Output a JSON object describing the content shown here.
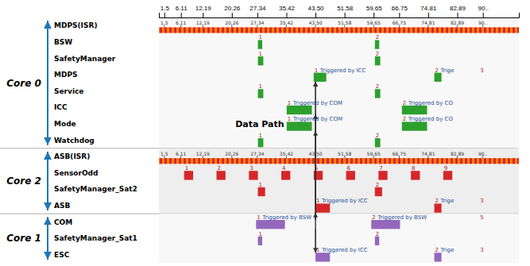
{
  "chart_data": {
    "type": "gantt",
    "orientation": "horizontal",
    "categories": [
      "MDPS(ISR)",
      "BSW",
      "SafetyManager",
      "MDPS",
      "Service",
      "ICC",
      "Mode",
      "Watchdog",
      "ASB(ISR)",
      "SensorOdd",
      "SafetyManager_Sat2",
      "ASB",
      "COM",
      "SafetyManager_Sat1",
      "ESC"
    ],
    "groups": [
      {
        "name": "Core 0",
        "rows": [
          0,
          7
        ]
      },
      {
        "name": "Core 2",
        "rows": [
          8,
          11
        ]
      },
      {
        "name": "Core 1",
        "rows": [
          12,
          14
        ]
      }
    ],
    "tasks": [
      {
        "isr": true,
        "bars": []
      },
      {
        "isr": false,
        "bars": [
          {
            "start": 27.5,
            "width": 1.2
          },
          {
            "start": 60.0,
            "width": 1.2
          }
        ]
      },
      {
        "isr": false,
        "bars": [
          {
            "start": 27.5,
            "width": 1.5
          },
          {
            "start": 60.0,
            "width": 1.5
          }
        ]
      },
      {
        "isr": false,
        "bars": [
          {
            "start": 43.0,
            "width": 3.5,
            "label": "Triggered by ICC"
          },
          {
            "start": 76.5,
            "width": 2.0,
            "label": "Trige"
          }
        ]
      },
      {
        "isr": false,
        "bars": [
          {
            "start": 27.5,
            "width": 1.5
          },
          {
            "start": 60.0,
            "width": 1.5
          }
        ]
      },
      {
        "isr": false,
        "bars": [
          {
            "start": 35.5,
            "width": 7.0,
            "label": "Triggered by COM"
          },
          {
            "start": 67.5,
            "width": 7.0,
            "label": "Triggered by CO"
          }
        ]
      },
      {
        "isr": false,
        "bars": [
          {
            "start": 35.5,
            "width": 7.0,
            "label": "Triggered by COM"
          },
          {
            "start": 67.5,
            "width": 7.0,
            "label": "Triggered by CO"
          }
        ]
      },
      {
        "isr": false,
        "bars": [
          {
            "start": 27.5,
            "width": 1.5
          },
          {
            "start": 60.0,
            "width": 1.5
          }
        ]
      },
      {
        "isr": true,
        "bars": []
      },
      {
        "isr": false,
        "bars": [
          {
            "start": 7,
            "width": 2.5
          },
          {
            "start": 16,
            "width": 2.5
          },
          {
            "start": 25,
            "width": 2.5
          },
          {
            "start": 34,
            "width": 2.5
          },
          {
            "start": 43,
            "width": 2.5
          },
          {
            "start": 52,
            "width": 2.5
          },
          {
            "start": 61,
            "width": 2.5
          },
          {
            "start": 70,
            "width": 2.5
          },
          {
            "start": 79,
            "width": 2.5
          }
        ]
      },
      {
        "isr": false,
        "bars": [
          {
            "start": 27.5,
            "width": 2.0
          },
          {
            "start": 60.0,
            "width": 2.0
          }
        ]
      },
      {
        "isr": false,
        "bars": [
          {
            "start": 43.5,
            "width": 4.0,
            "label": "Triggered by ICC"
          },
          {
            "start": 76.5,
            "width": 2.0,
            "label": "Trige"
          }
        ]
      },
      {
        "isr": false,
        "bars": [
          {
            "start": 27.0,
            "width": 8.0,
            "label": "Triggered by BSW"
          },
          {
            "start": 59.0,
            "width": 8.0,
            "label": "Triggered by BSW"
          }
        ]
      },
      {
        "isr": false,
        "bars": [
          {
            "start": 27.5,
            "width": 1.2
          },
          {
            "start": 60.0,
            "width": 1.2
          }
        ]
      },
      {
        "isr": false,
        "bars": [
          {
            "start": 43.5,
            "width": 4.0,
            "label": "Triggered by ICC"
          },
          {
            "start": 76.5,
            "width": 2.0,
            "label": "Trige"
          }
        ]
      }
    ],
    "annotations": [
      {
        "row": 1,
        "x": 27.5,
        "text": "1"
      },
      {
        "row": 1,
        "x": 60.0,
        "text": "2"
      },
      {
        "row": 2,
        "x": 27.5,
        "text": "1"
      },
      {
        "row": 2,
        "x": 60.0,
        "text": "2"
      },
      {
        "row": 3,
        "x": 43.0,
        "text": "1"
      },
      {
        "row": 3,
        "x": 76.5,
        "text": "2"
      },
      {
        "row": 3,
        "x": 89.0,
        "text": "3"
      },
      {
        "row": 4,
        "x": 27.5,
        "text": "1"
      },
      {
        "row": 4,
        "x": 60.0,
        "text": "2"
      },
      {
        "row": 5,
        "x": 35.5,
        "text": "1"
      },
      {
        "row": 5,
        "x": 67.5,
        "text": "2"
      },
      {
        "row": 6,
        "x": 35.5,
        "text": "1"
      },
      {
        "row": 6,
        "x": 67.5,
        "text": "2"
      },
      {
        "row": 7,
        "x": 27.5,
        "text": "1"
      },
      {
        "row": 7,
        "x": 60.0,
        "text": "2"
      },
      {
        "row": 9,
        "x": 7,
        "text": "1"
      },
      {
        "row": 9,
        "x": 16,
        "text": "2"
      },
      {
        "row": 9,
        "x": 25,
        "text": "3"
      },
      {
        "row": 9,
        "x": 34,
        "text": "4"
      },
      {
        "row": 9,
        "x": 43,
        "text": "5"
      },
      {
        "row": 9,
        "x": 52,
        "text": "6"
      },
      {
        "row": 9,
        "x": 61,
        "text": "7"
      },
      {
        "row": 9,
        "x": 70,
        "text": "8"
      },
      {
        "row": 9,
        "x": 79,
        "text": "9"
      },
      {
        "row": 10,
        "x": 27.5,
        "text": "1"
      },
      {
        "row": 10,
        "x": 60.0,
        "text": "2"
      },
      {
        "row": 11,
        "x": 43.5,
        "text": "1"
      },
      {
        "row": 11,
        "x": 76.5,
        "text": "2"
      },
      {
        "row": 11,
        "x": 89.0,
        "text": "3"
      },
      {
        "row": 12,
        "x": 27.0,
        "text": "1"
      },
      {
        "row": 12,
        "x": 59.0,
        "text": "2"
      },
      {
        "row": 12,
        "x": 89.0,
        "text": "5"
      },
      {
        "row": 13,
        "x": 27.5,
        "text": "1"
      },
      {
        "row": 13,
        "x": 60.0,
        "text": "2"
      },
      {
        "row": 14,
        "x": 43.5,
        "text": "1"
      },
      {
        "row": 14,
        "x": 76.5,
        "text": "2"
      },
      {
        "row": 14,
        "x": 89.0,
        "text": "3"
      }
    ],
    "text_annotations": [
      {
        "text": "Data Path",
        "x": 28,
        "row": 6.0
      }
    ],
    "arrows": [
      {
        "x": 43.5,
        "from": 12,
        "to": 3
      },
      {
        "x": 43.5,
        "from": 12,
        "to": 5
      },
      {
        "x": 43.5,
        "from": 12,
        "to": 6
      },
      {
        "x": 43.5,
        "from": 11,
        "to": 3
      },
      {
        "x": 43.5,
        "from": 11,
        "to": 5
      },
      {
        "x": 43.5,
        "from": 14,
        "to": 11
      },
      {
        "x": 43.5,
        "from": 12,
        "to": 14
      }
    ],
    "connectors": [
      {
        "x": 43.5,
        "from": 14,
        "to": 3
      }
    ],
    "xlim": [
      0,
      100
    ],
    "xticks": [
      1.5,
      6.11,
      12.19,
      20.26,
      27.34,
      35.42,
      {
        "value": 43.5,
        "label": "43.50"
      },
      51.58,
      59.65,
      66.75,
      74.81,
      82.89,
      {
        "value": 90,
        "label": "90.."
      }
    ]
  }
}
